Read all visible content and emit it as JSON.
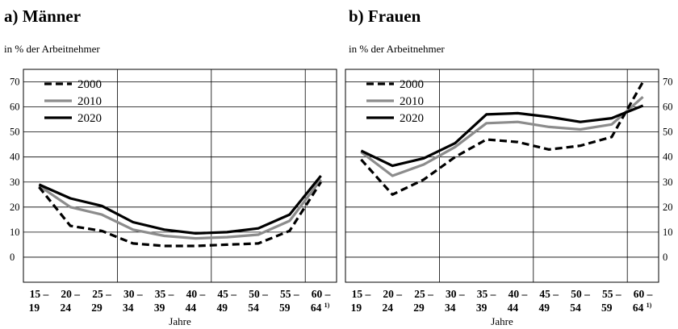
{
  "chart_data": [
    {
      "type": "line",
      "title": "a) Männer",
      "ylabel": "in % der Arbeitnehmer",
      "xlabel": "Jahre",
      "ylim": [
        -10,
        75
      ],
      "yticks": [
        0,
        10,
        20,
        30,
        40,
        50,
        60,
        70
      ],
      "categories": [
        {
          "top": "15 –",
          "bottom": "19",
          "footnote": ""
        },
        {
          "top": "20 –",
          "bottom": "24",
          "footnote": ""
        },
        {
          "top": "25 –",
          "bottom": "29",
          "footnote": ""
        },
        {
          "top": "30 –",
          "bottom": "34",
          "footnote": ""
        },
        {
          "top": "35 –",
          "bottom": "39",
          "footnote": ""
        },
        {
          "top": "40 –",
          "bottom": "44",
          "footnote": ""
        },
        {
          "top": "45 –",
          "bottom": "49",
          "footnote": ""
        },
        {
          "top": "50 –",
          "bottom": "54",
          "footnote": ""
        },
        {
          "top": "55 –",
          "bottom": "59",
          "footnote": ""
        },
        {
          "top": "60 –",
          "bottom": "64",
          "footnote": "1)"
        }
      ],
      "legend": {
        "placement": "top-left"
      },
      "grid": "vertical-every-3-categories",
      "series": [
        {
          "name": "2000",
          "style": "dashed",
          "color": "#000000",
          "values": [
            28,
            12.5,
            10.5,
            5.5,
            4.5,
            4.5,
            5,
            5.5,
            10.5,
            30
          ]
        },
        {
          "name": "2010",
          "style": "solid",
          "color": "#8c8c8c",
          "values": [
            28.5,
            20,
            17,
            11,
            8.5,
            7.5,
            8,
            9,
            14.5,
            31
          ]
        },
        {
          "name": "2020",
          "style": "solid",
          "color": "#000000",
          "values": [
            29,
            23.5,
            20.5,
            14,
            11,
            9.5,
            10,
            11.5,
            17,
            32.5
          ]
        }
      ]
    },
    {
      "type": "line",
      "title": "b) Frauen",
      "ylabel": "in % der Arbeitnehmer",
      "xlabel": "Jahre",
      "ylim": [
        -10,
        75
      ],
      "yticks": [
        0,
        10,
        20,
        30,
        40,
        50,
        60,
        70
      ],
      "categories": [
        {
          "top": "15 –",
          "bottom": "19",
          "footnote": ""
        },
        {
          "top": "20 –",
          "bottom": "24",
          "footnote": ""
        },
        {
          "top": "25 –",
          "bottom": "29",
          "footnote": ""
        },
        {
          "top": "30 –",
          "bottom": "34",
          "footnote": ""
        },
        {
          "top": "35 –",
          "bottom": "39",
          "footnote": ""
        },
        {
          "top": "40 –",
          "bottom": "44",
          "footnote": ""
        },
        {
          "top": "45 –",
          "bottom": "49",
          "footnote": ""
        },
        {
          "top": "50 –",
          "bottom": "54",
          "footnote": ""
        },
        {
          "top": "55 –",
          "bottom": "59",
          "footnote": ""
        },
        {
          "top": "60 –",
          "bottom": "64",
          "footnote": "1)"
        }
      ],
      "legend": {
        "placement": "top-left"
      },
      "grid": "vertical-every-3-categories",
      "series": [
        {
          "name": "2000",
          "style": "dashed",
          "color": "#000000",
          "values": [
            39,
            25,
            31,
            40,
            47,
            46,
            43,
            44.5,
            48,
            70
          ]
        },
        {
          "name": "2010",
          "style": "solid",
          "color": "#8c8c8c",
          "values": [
            42,
            32.5,
            37,
            44,
            53.5,
            54,
            52,
            51,
            53,
            64
          ]
        },
        {
          "name": "2020",
          "style": "solid",
          "color": "#000000",
          "values": [
            42.5,
            36.5,
            39.5,
            45.5,
            57,
            57.5,
            56,
            54,
            55.5,
            60.5
          ]
        }
      ]
    }
  ]
}
